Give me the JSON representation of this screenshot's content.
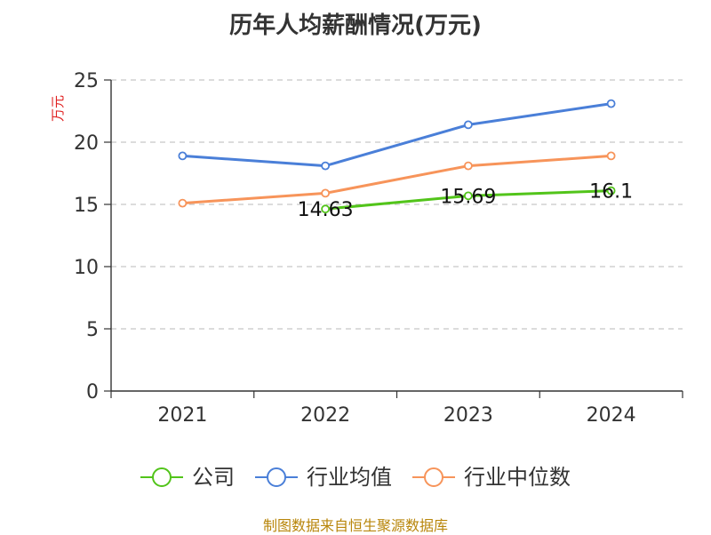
{
  "chart_data": {
    "type": "line",
    "title": "历年人均薪酬情况(万元)",
    "ylabel": "万元",
    "xlabel": "",
    "categories": [
      "2021",
      "2022",
      "2023",
      "2024"
    ],
    "ylim": [
      0,
      25
    ],
    "yticks": [
      0,
      5,
      10,
      15,
      20,
      25
    ],
    "grid": true,
    "legend_position": "bottom",
    "series": [
      {
        "name": "公司",
        "color": "#52c41a",
        "values": [
          null,
          14.63,
          15.69,
          16.1
        ],
        "labels": [
          "",
          "14.63",
          "15.69",
          "16.1"
        ]
      },
      {
        "name": "行业均值",
        "color": "#4a7fd8",
        "values": [
          18.9,
          18.1,
          21.4,
          23.1
        ]
      },
      {
        "name": "行业中位数",
        "color": "#f7945a",
        "values": [
          15.1,
          15.9,
          18.1,
          18.9
        ]
      }
    ]
  },
  "footer": {
    "source": "制图数据来自恒生聚源数据库"
  }
}
